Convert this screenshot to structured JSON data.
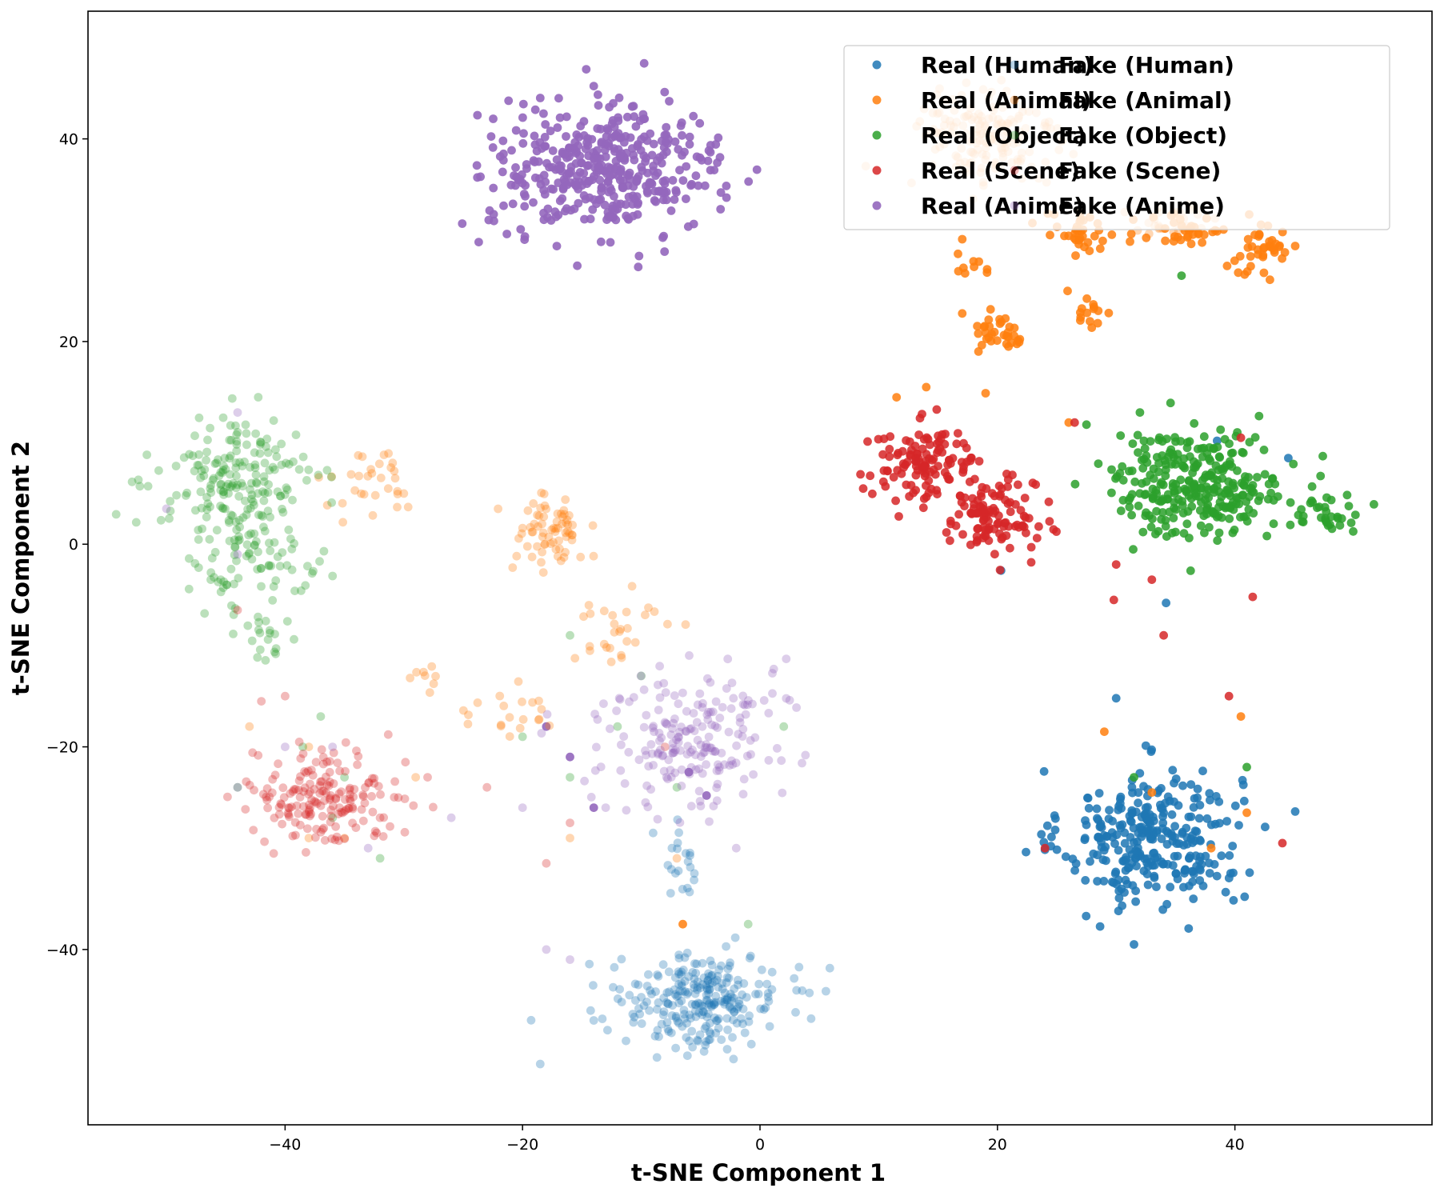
{
  "chart_data": {
    "type": "scatter",
    "title": "",
    "xlabel": "t-SNE Component 1",
    "ylabel": "t-SNE Component 2",
    "xlim": [
      -56.6,
      56.6
    ],
    "ylim": [
      -57.3,
      52.6
    ],
    "xticks": [
      -40,
      -20,
      0,
      20,
      40
    ],
    "yticks": [
      -40,
      -20,
      0,
      20,
      40
    ],
    "xtick_labels": [
      "−40",
      "−20",
      "0",
      "20",
      "40"
    ],
    "ytick_labels": [
      "−40",
      "−20",
      "0",
      "20",
      "40"
    ],
    "grid": false,
    "legend_position": "top-right",
    "legend_columns": 2,
    "series": [
      {
        "name": "Real (Human)",
        "color": "#1f77b4",
        "alpha": 0.85,
        "clusters": [
          {
            "center": [
              33,
              -29
            ],
            "spread": [
              5.0,
              4.5
            ],
            "n": 300
          }
        ],
        "points": [
          [
            30,
            -15.2
          ],
          [
            31.5,
            -39.5
          ],
          [
            24.5,
            -29.8
          ],
          [
            44.5,
            8.5
          ],
          [
            20.3,
            -2.6
          ],
          [
            34.2,
            -5.8
          ],
          [
            38.5,
            10.2
          ]
        ]
      },
      {
        "name": "Real (Animal)",
        "color": "#ff7f0e",
        "alpha": 0.85,
        "clusters": [
          {
            "center": [
              36,
              31
            ],
            "spread": [
              2.5,
              1.8
            ],
            "n": 35
          },
          {
            "center": [
              42,
              29
            ],
            "spread": [
              2.2,
              1.8
            ],
            "n": 40
          },
          {
            "center": [
              18,
              28
            ],
            "spread": [
              1.2,
              1.0
            ],
            "n": 10
          },
          {
            "center": [
              20.5,
              21
            ],
            "spread": [
              1.8,
              1.5
            ],
            "n": 35
          },
          {
            "center": [
              27,
              30.5
            ],
            "spread": [
              2.0,
              1.5
            ],
            "n": 35
          },
          {
            "center": [
              27.5,
              23
            ],
            "spread": [
              1.5,
              1.2
            ],
            "n": 15
          }
        ],
        "points": [
          [
            40.5,
            -17
          ],
          [
            41,
            -26.5
          ],
          [
            11.5,
            14.5
          ],
          [
            14,
            15.5
          ],
          [
            26,
            12
          ],
          [
            19,
            14.9
          ],
          [
            33,
            -24.5
          ],
          [
            29,
            -18.5
          ],
          [
            38,
            -30
          ],
          [
            -6.5,
            -37.5
          ]
        ]
      },
      {
        "name": "Real (Object)",
        "color": "#2ca02c",
        "alpha": 0.85,
        "clusters": [
          {
            "center": [
              37,
              6
            ],
            "spread": [
              4.8,
              3.5
            ],
            "n": 300
          },
          {
            "center": [
              48,
              3
            ],
            "spread": [
              2.2,
              1.2
            ],
            "n": 30
          }
        ],
        "points": [
          [
            32,
            13
          ],
          [
            27.5,
            11.8
          ],
          [
            41,
            -22
          ],
          [
            31.5,
            -23
          ],
          [
            35.5,
            26.5
          ]
        ]
      },
      {
        "name": "Real (Scene)",
        "color": "#d62728",
        "alpha": 0.85,
        "clusters": [
          {
            "center": [
              14,
              8
            ],
            "spread": [
              3.2,
              2.5
            ],
            "n": 120
          },
          {
            "center": [
              19.5,
              2.5
            ],
            "spread": [
              2.5,
              2.5
            ],
            "n": 110
          }
        ],
        "points": [
          [
            30,
            -2
          ],
          [
            33,
            -3.5
          ],
          [
            41.5,
            -5.2
          ],
          [
            29.8,
            -5.5
          ],
          [
            39.5,
            -15
          ],
          [
            44,
            -29.5
          ],
          [
            24,
            -30
          ],
          [
            40.5,
            10.5
          ],
          [
            34,
            -9
          ],
          [
            26.5,
            12
          ]
        ]
      },
      {
        "name": "Real (Anime)",
        "color": "#9467bd",
        "alpha": 0.9,
        "clusters": [
          {
            "center": [
              -13,
              37
            ],
            "spread": [
              6.5,
              4.2
            ],
            "n": 420
          }
        ],
        "points": [
          [
            -18,
            -18
          ],
          [
            -16,
            -21
          ],
          [
            -14,
            -26
          ],
          [
            -6,
            -22.5
          ],
          [
            -4.5,
            -24.8
          ]
        ]
      },
      {
        "name": "Fake (Human)",
        "color": "#1f77b4",
        "alpha": 0.32,
        "clusters": [
          {
            "center": [
              -5,
              -45
            ],
            "spread": [
              4.6,
              3.0
            ],
            "n": 260
          },
          {
            "center": [
              -6.5,
              -32
            ],
            "spread": [
              1.0,
              2.5
            ],
            "n": 20
          }
        ],
        "points": [
          [
            3,
            -46.2
          ],
          [
            -14,
            -47
          ],
          [
            -9,
            -28.5
          ]
        ]
      },
      {
        "name": "Fake (Animal)",
        "color": "#ff7f0e",
        "alpha": 0.32,
        "clusters": [
          {
            "center": [
              19,
              40
            ],
            "spread": [
              4.2,
              3.6
            ],
            "n": 160
          },
          {
            "center": [
              35,
              32
            ],
            "spread": [
              2.5,
              1.5
            ],
            "n": 30
          },
          {
            "center": [
              -18,
              1
            ],
            "spread": [
              2.0,
              2.5
            ],
            "n": 70
          },
          {
            "center": [
              -32.5,
              6
            ],
            "spread": [
              2.5,
              2.2
            ],
            "n": 30
          },
          {
            "center": [
              -13,
              -9
            ],
            "spread": [
              3.0,
              2.5
            ],
            "n": 20
          },
          {
            "center": [
              -22,
              -16
            ],
            "spread": [
              3.5,
              2.5
            ],
            "n": 20
          },
          {
            "center": [
              -28,
              -13
            ],
            "spread": [
              1.5,
              1.5
            ],
            "n": 8
          },
          {
            "center": [
              -8,
              -8
            ],
            "spread": [
              3.0,
              1.5
            ],
            "n": 8
          }
        ],
        "points": [
          [
            -38,
            -20
          ],
          [
            -38,
            -29
          ],
          [
            -35,
            -29
          ],
          [
            -43,
            -18
          ],
          [
            -29,
            -23
          ],
          [
            -16,
            -29
          ],
          [
            -7,
            -31
          ],
          [
            -30,
            5
          ]
        ]
      },
      {
        "name": "Fake (Object)",
        "color": "#2ca02c",
        "alpha": 0.32,
        "clusters": [
          {
            "center": [
              -44,
              6
            ],
            "spread": [
              4.5,
              4.0
            ],
            "n": 190
          },
          {
            "center": [
              -42,
              -2
            ],
            "spread": [
              3.5,
              3.0
            ],
            "n": 70
          },
          {
            "center": [
              -41.5,
              -9
            ],
            "spread": [
              1.5,
              1.5
            ],
            "n": 20
          }
        ],
        "points": [
          [
            -37,
            -17
          ],
          [
            -38.5,
            -20
          ],
          [
            -36,
            -27
          ],
          [
            -44,
            -24
          ],
          [
            -12,
            -18
          ],
          [
            -16,
            -23
          ],
          [
            -7,
            -24
          ],
          [
            -1,
            -37.5
          ],
          [
            2,
            -18
          ],
          [
            -20,
            -19
          ],
          [
            -16,
            -9
          ],
          [
            -10,
            -13
          ],
          [
            -35,
            -23
          ],
          [
            -32,
            -31
          ]
        ]
      },
      {
        "name": "Fake (Scene)",
        "color": "#d62728",
        "alpha": 0.32,
        "clusters": [
          {
            "center": [
              -37,
              -25
            ],
            "spread": [
              4.0,
              3.0
            ],
            "n": 180
          }
        ],
        "points": [
          [
            -42,
            -15.5
          ],
          [
            -28,
            -23
          ],
          [
            -23,
            -24
          ],
          [
            -16,
            -27.5
          ],
          [
            -18,
            -31.5
          ],
          [
            -8,
            -20
          ],
          [
            -32,
            -27
          ],
          [
            -44,
            -6.5
          ],
          [
            -40,
            -15
          ]
        ]
      },
      {
        "name": "Fake (Anime)",
        "color": "#9467bd",
        "alpha": 0.32,
        "clusters": [
          {
            "center": [
              -6,
              -19
            ],
            "spread": [
              5.0,
              5.0
            ],
            "n": 200
          }
        ],
        "points": [
          [
            -36,
            -20
          ],
          [
            -40,
            -20
          ],
          [
            -44,
            -24
          ],
          [
            -16,
            -41
          ],
          [
            -18,
            -40
          ],
          [
            -13,
            -26
          ],
          [
            -20,
            -26
          ],
          [
            -50,
            3.5
          ],
          [
            -33,
            -30
          ],
          [
            -26,
            -27
          ],
          [
            -2,
            -30
          ],
          [
            -44,
            13
          ],
          [
            -44,
            -1
          ]
        ]
      }
    ]
  }
}
